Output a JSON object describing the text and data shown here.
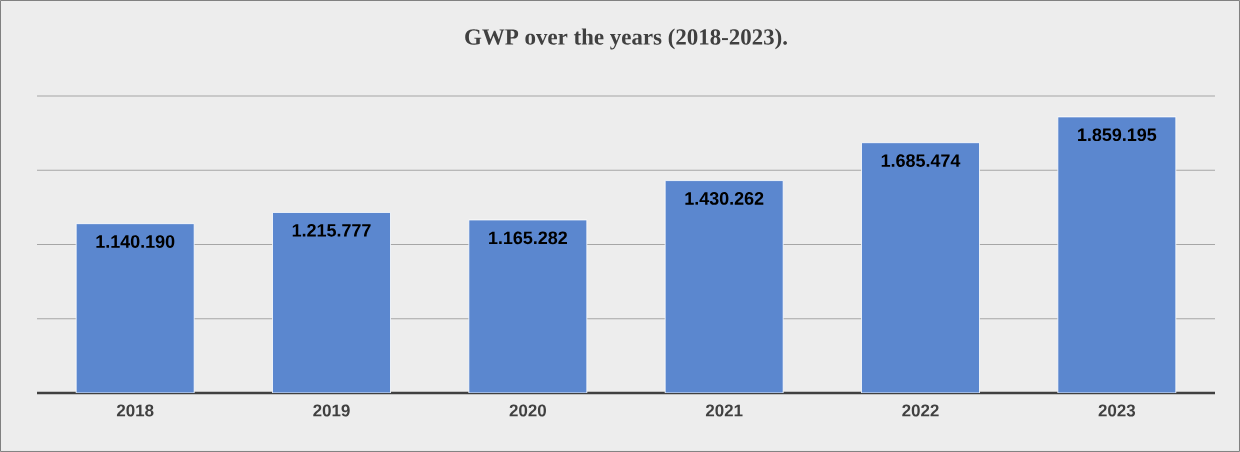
{
  "chart_data": {
    "type": "bar",
    "title": "GWP over the years (2018-2023).",
    "categories": [
      "2018",
      "2019",
      "2020",
      "2021",
      "2022",
      "2023"
    ],
    "values": [
      1140190,
      1215777,
      1165282,
      1430262,
      1685474,
      1859195
    ],
    "value_labels": [
      "1.140.190",
      "1.215.777",
      "1.165.282",
      "1.430.262",
      "1.685.474",
      "1.859.195"
    ],
    "color": "#5b87cf",
    "ylim": [
      0,
      2000000
    ],
    "yticks": [
      {
        "value": 0,
        "label": null
      },
      {
        "value": 500000,
        "label": null
      },
      {
        "value": 1000000,
        "label": null
      },
      {
        "value": 1500000,
        "label": null
      },
      {
        "value": 2000000,
        "label": null
      }
    ],
    "grid": "y",
    "tick_labels": "x"
  }
}
